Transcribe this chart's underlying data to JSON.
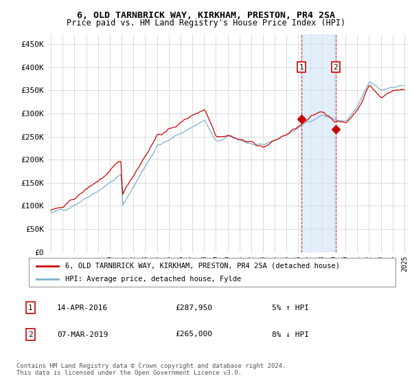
{
  "title": "6, OLD TARNBRICK WAY, KIRKHAM, PRESTON, PR4 2SA",
  "subtitle": "Price paid vs. HM Land Registry's House Price Index (HPI)",
  "ylabel_ticks": [
    "£0",
    "£50K",
    "£100K",
    "£150K",
    "£200K",
    "£250K",
    "£300K",
    "£350K",
    "£400K",
    "£450K"
  ],
  "ytick_values": [
    0,
    50000,
    100000,
    150000,
    200000,
    250000,
    300000,
    350000,
    400000,
    450000
  ],
  "ylim": [
    0,
    470000
  ],
  "hpi_color": "#7ab0d4",
  "hpi_fill_color": "#d0e4f5",
  "price_color": "#cc0000",
  "marker1_year": 2016.28,
  "marker1_price": 287950,
  "marker2_year": 2019.17,
  "marker2_price": 265000,
  "legend_entry1": "6, OLD TARNBRICK WAY, KIRKHAM, PRESTON, PR4 2SA (detached house)",
  "legend_entry2": "HPI: Average price, detached house, Fylde",
  "table_row1": [
    "1",
    "14-APR-2016",
    "£287,950",
    "5% ↑ HPI"
  ],
  "table_row2": [
    "2",
    "07-MAR-2019",
    "£265,000",
    "8% ↓ HPI"
  ],
  "footer": "Contains HM Land Registry data © Crown copyright and database right 2024.\nThis data is licensed under the Open Government Licence v3.0.",
  "xstart": 1995,
  "xend": 2025
}
